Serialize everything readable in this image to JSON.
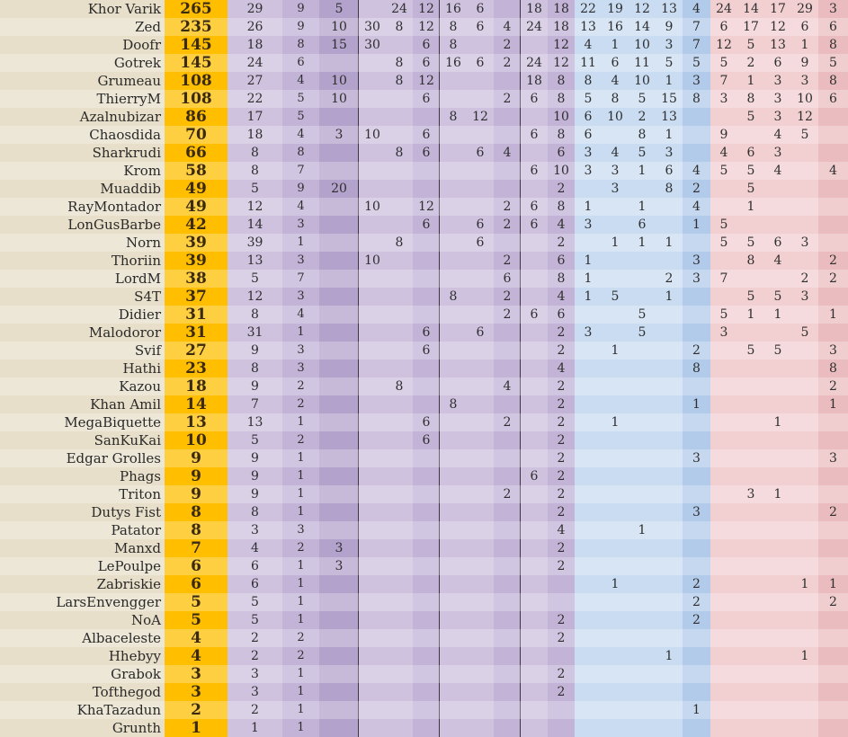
{
  "colors": {
    "page_bg": "#e7dfc9",
    "total_column": "#ffbe00",
    "purple_light": "#cec2df",
    "purple_mid": "#c2b3d7",
    "purple_dark": "#b3a2cb",
    "blue_light": "#c9dcf2",
    "blue_dark": "#b2cbea",
    "red_light": "#f2cfd1",
    "red_dark": "#ebbcbf"
  },
  "rows": [
    {
      "name": "Khor Varik",
      "total": "265",
      "cells": [
        "29",
        "9",
        "5",
        "",
        "24",
        "12",
        "16",
        "6",
        "",
        "18",
        "18",
        "22",
        "19",
        "12",
        "13",
        "4",
        "24",
        "14",
        "17",
        "29",
        "3"
      ]
    },
    {
      "name": "Zed",
      "total": "235",
      "cells": [
        "26",
        "9",
        "10",
        "30",
        "8",
        "12",
        "8",
        "6",
        "4",
        "24",
        "18",
        "13",
        "16",
        "14",
        "9",
        "7",
        "6",
        "17",
        "12",
        "6",
        "6"
      ]
    },
    {
      "name": "Doofr",
      "total": "145",
      "cells": [
        "18",
        "8",
        "15",
        "30",
        "",
        "6",
        "8",
        "",
        "2",
        "",
        "12",
        "4",
        "1",
        "10",
        "3",
        "7",
        "12",
        "5",
        "13",
        "1",
        "8"
      ]
    },
    {
      "name": "Gotrek",
      "total": "145",
      "cells": [
        "24",
        "6",
        "",
        "",
        "8",
        "6",
        "16",
        "6",
        "2",
        "24",
        "12",
        "11",
        "6",
        "11",
        "5",
        "5",
        "5",
        "2",
        "6",
        "9",
        "5"
      ]
    },
    {
      "name": "Grumeau",
      "total": "108",
      "cells": [
        "27",
        "4",
        "10",
        "",
        "8",
        "12",
        "",
        "",
        "",
        "18",
        "8",
        "8",
        "4",
        "10",
        "1",
        "3",
        "7",
        "1",
        "3",
        "3",
        "8"
      ]
    },
    {
      "name": "ThierryM",
      "total": "108",
      "cells": [
        "22",
        "5",
        "10",
        "",
        "",
        "6",
        "",
        "",
        "2",
        "6",
        "8",
        "5",
        "8",
        "5",
        "15",
        "8",
        "3",
        "8",
        "3",
        "10",
        "6"
      ]
    },
    {
      "name": "Azalnubizar",
      "total": "86",
      "cells": [
        "17",
        "5",
        "",
        "",
        "",
        "",
        "8",
        "12",
        "",
        "",
        "10",
        "6",
        "10",
        "2",
        "13",
        "",
        "",
        "5",
        "3",
        "12",
        ""
      ]
    },
    {
      "name": "Chaosdida",
      "total": "70",
      "cells": [
        "18",
        "4",
        "3",
        "10",
        "",
        "6",
        "",
        "",
        "",
        "6",
        "8",
        "6",
        "",
        "8",
        "1",
        "",
        "9",
        "",
        "4",
        "5",
        ""
      ]
    },
    {
      "name": "Sharkrudi",
      "total": "66",
      "cells": [
        "8",
        "8",
        "",
        "",
        "8",
        "6",
        "",
        "6",
        "4",
        "",
        "6",
        "3",
        "4",
        "5",
        "3",
        "",
        "4",
        "6",
        "3",
        "",
        ""
      ]
    },
    {
      "name": "Krom",
      "total": "58",
      "cells": [
        "8",
        "7",
        "",
        "",
        "",
        "",
        "",
        "",
        "",
        "6",
        "10",
        "3",
        "3",
        "1",
        "6",
        "4",
        "5",
        "5",
        "4",
        "",
        "4"
      ]
    },
    {
      "name": "Muaddib",
      "total": "49",
      "cells": [
        "5",
        "9",
        "20",
        "",
        "",
        "",
        "",
        "",
        "",
        "",
        "2",
        "",
        "3",
        "",
        "8",
        "2",
        "",
        "5",
        "",
        "",
        ""
      ]
    },
    {
      "name": "RayMontador",
      "total": "49",
      "cells": [
        "12",
        "4",
        "",
        "10",
        "",
        "12",
        "",
        "",
        "2",
        "6",
        "8",
        "1",
        "",
        "1",
        "",
        "4",
        "",
        "1",
        "",
        "",
        ""
      ]
    },
    {
      "name": "LonGusBarbe",
      "total": "42",
      "cells": [
        "14",
        "3",
        "",
        "",
        "",
        "6",
        "",
        "6",
        "2",
        "6",
        "4",
        "3",
        "",
        "6",
        "",
        "1",
        "5",
        "",
        "",
        "",
        ""
      ]
    },
    {
      "name": "Norn",
      "total": "39",
      "cells": [
        "39",
        "1",
        "",
        "",
        "8",
        "",
        "",
        "6",
        "",
        "",
        "2",
        "",
        "1",
        "1",
        "1",
        "",
        "5",
        "5",
        "6",
        "3",
        ""
      ]
    },
    {
      "name": "Thoriin",
      "total": "39",
      "cells": [
        "13",
        "3",
        "",
        "10",
        "",
        "",
        "",
        "",
        "2",
        "",
        "6",
        "1",
        "",
        "",
        "",
        "3",
        "",
        "8",
        "4",
        "",
        "2"
      ]
    },
    {
      "name": "LordM",
      "total": "38",
      "cells": [
        "5",
        "7",
        "",
        "",
        "",
        "",
        "",
        "",
        "6",
        "",
        "8",
        "1",
        "",
        "",
        "2",
        "3",
        "7",
        "",
        "",
        "2",
        "2"
      ]
    },
    {
      "name": "S4T",
      "total": "37",
      "cells": [
        "12",
        "3",
        "",
        "",
        "",
        "",
        "8",
        "",
        "2",
        "",
        "4",
        "1",
        "5",
        "",
        "1",
        "",
        "",
        "5",
        "5",
        "3",
        ""
      ]
    },
    {
      "name": "Didier",
      "total": "31",
      "cells": [
        "8",
        "4",
        "",
        "",
        "",
        "",
        "",
        "",
        "2",
        "6",
        "6",
        "",
        "",
        "5",
        "",
        "",
        "5",
        "1",
        "1",
        "",
        "1"
      ]
    },
    {
      "name": "Malodoror",
      "total": "31",
      "cells": [
        "31",
        "1",
        "",
        "",
        "",
        "6",
        "",
        "6",
        "",
        "",
        "2",
        "3",
        "",
        "5",
        "",
        "",
        "3",
        "",
        "",
        "5",
        ""
      ]
    },
    {
      "name": "Svif",
      "total": "27",
      "cells": [
        "9",
        "3",
        "",
        "",
        "",
        "6",
        "",
        "",
        "",
        "",
        "2",
        "",
        "1",
        "",
        "",
        "2",
        "",
        "5",
        "5",
        "",
        "3"
      ]
    },
    {
      "name": "Hathi",
      "total": "23",
      "cells": [
        "8",
        "3",
        "",
        "",
        "",
        "",
        "",
        "",
        "",
        "",
        "4",
        "",
        "",
        "",
        "",
        "8",
        "",
        "",
        "",
        "",
        "8"
      ]
    },
    {
      "name": "Kazou",
      "total": "18",
      "cells": [
        "9",
        "2",
        "",
        "",
        "8",
        "",
        "",
        "",
        "4",
        "",
        "2",
        "",
        "",
        "",
        "",
        "",
        "",
        "",
        "",
        "",
        "2"
      ]
    },
    {
      "name": "Khan Amil",
      "total": "14",
      "cells": [
        "7",
        "2",
        "",
        "",
        "",
        "",
        "8",
        "",
        "",
        "",
        "2",
        "",
        "",
        "",
        "",
        "1",
        "",
        "",
        "",
        "",
        "1"
      ]
    },
    {
      "name": "MegaBiquette",
      "total": "13",
      "cells": [
        "13",
        "1",
        "",
        "",
        "",
        "6",
        "",
        "",
        "2",
        "",
        "2",
        "",
        "1",
        "",
        "",
        "",
        "",
        "",
        "1",
        "",
        ""
      ]
    },
    {
      "name": "SanKuKai",
      "total": "10",
      "cells": [
        "5",
        "2",
        "",
        "",
        "",
        "6",
        "",
        "",
        "",
        "",
        "2",
        "",
        "",
        "",
        "",
        "",
        "",
        "",
        "",
        "",
        ""
      ]
    },
    {
      "name": "Edgar Grolles",
      "total": "9",
      "cells": [
        "9",
        "1",
        "",
        "",
        "",
        "",
        "",
        "",
        "",
        "",
        "2",
        "",
        "",
        "",
        "",
        "3",
        "",
        "",
        "",
        "",
        "3"
      ]
    },
    {
      "name": "Phags",
      "total": "9",
      "cells": [
        "9",
        "1",
        "",
        "",
        "",
        "",
        "",
        "",
        "",
        "6",
        "2",
        "",
        "",
        "",
        "",
        "",
        "",
        "",
        "",
        "",
        ""
      ]
    },
    {
      "name": "Triton",
      "total": "9",
      "cells": [
        "9",
        "1",
        "",
        "",
        "",
        "",
        "",
        "",
        "2",
        "",
        "2",
        "",
        "",
        "",
        "",
        "",
        "",
        "3",
        "1",
        "",
        ""
      ]
    },
    {
      "name": "Dutys Fist",
      "total": "8",
      "cells": [
        "8",
        "1",
        "",
        "",
        "",
        "",
        "",
        "",
        "",
        "",
        "2",
        "",
        "",
        "",
        "",
        "3",
        "",
        "",
        "",
        "",
        "2"
      ]
    },
    {
      "name": "Patator",
      "total": "8",
      "cells": [
        "3",
        "3",
        "",
        "",
        "",
        "",
        "",
        "",
        "",
        "",
        "4",
        "",
        "",
        "1",
        "",
        "",
        "",
        "",
        "",
        "",
        ""
      ]
    },
    {
      "name": "Manxd",
      "total": "7",
      "cells": [
        "4",
        "2",
        "3",
        "",
        "",
        "",
        "",
        "",
        "",
        "",
        "2",
        "",
        "",
        "",
        "",
        "",
        "",
        "",
        "",
        "",
        ""
      ]
    },
    {
      "name": "LePoulpe",
      "total": "6",
      "cells": [
        "6",
        "1",
        "3",
        "",
        "",
        "",
        "",
        "",
        "",
        "",
        "2",
        "",
        "",
        "",
        "",
        "",
        "",
        "",
        "",
        "",
        ""
      ]
    },
    {
      "name": "Zabriskie",
      "total": "6",
      "cells": [
        "6",
        "1",
        "",
        "",
        "",
        "",
        "",
        "",
        "",
        "",
        "",
        "",
        "1",
        "",
        "",
        "2",
        "",
        "",
        "",
        "1",
        "1"
      ]
    },
    {
      "name": "LarsEnvengger",
      "total": "5",
      "cells": [
        "5",
        "1",
        "",
        "",
        "",
        "",
        "",
        "",
        "",
        "",
        "",
        "",
        "",
        "",
        "",
        "2",
        "",
        "",
        "",
        "",
        "2"
      ]
    },
    {
      "name": "NoA",
      "total": "5",
      "cells": [
        "5",
        "1",
        "",
        "",
        "",
        "",
        "",
        "",
        "",
        "",
        "2",
        "",
        "",
        "",
        "",
        "2",
        "",
        "",
        "",
        "",
        ""
      ]
    },
    {
      "name": "Albaceleste",
      "total": "4",
      "cells": [
        "2",
        "2",
        "",
        "",
        "",
        "",
        "",
        "",
        "",
        "",
        "2",
        "",
        "",
        "",
        "",
        "",
        "",
        "",
        "",
        "",
        ""
      ]
    },
    {
      "name": "Hhebyy",
      "total": "4",
      "cells": [
        "2",
        "2",
        "",
        "",
        "",
        "",
        "",
        "",
        "",
        "",
        "",
        "",
        "",
        "",
        "1",
        "",
        "",
        "",
        "",
        "1",
        ""
      ]
    },
    {
      "name": "Grabok",
      "total": "3",
      "cells": [
        "3",
        "1",
        "",
        "",
        "",
        "",
        "",
        "",
        "",
        "",
        "2",
        "",
        "",
        "",
        "",
        "",
        "",
        "",
        "",
        "",
        ""
      ]
    },
    {
      "name": "Tofthegod",
      "total": "3",
      "cells": [
        "3",
        "1",
        "",
        "",
        "",
        "",
        "",
        "",
        "",
        "",
        "2",
        "",
        "",
        "",
        "",
        "",
        "",
        "",
        "",
        "",
        ""
      ]
    },
    {
      "name": "KhaTazadun",
      "total": "2",
      "cells": [
        "2",
        "1",
        "",
        "",
        "",
        "",
        "",
        "",
        "",
        "",
        "",
        "",
        "",
        "",
        "",
        "1",
        "",
        "",
        "",
        "",
        ""
      ]
    },
    {
      "name": "Grunth",
      "total": "1",
      "cells": [
        "1",
        "1",
        "",
        "",
        "",
        "",
        "",
        "",
        "",
        "",
        "",
        "",
        "",
        "",
        "",
        "",
        "",
        "",
        "",
        "",
        ""
      ]
    }
  ]
}
